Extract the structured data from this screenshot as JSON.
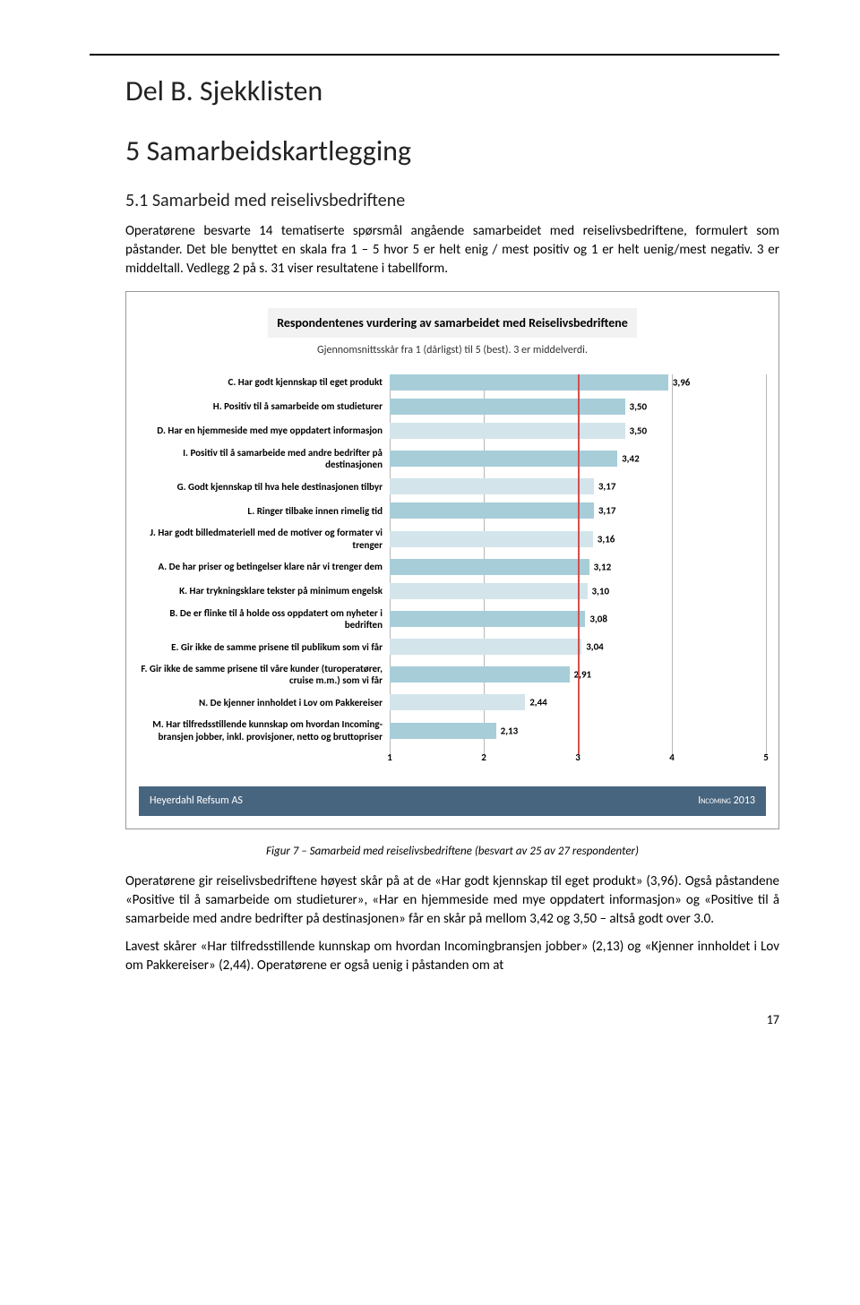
{
  "headings": {
    "part": "Del B. Sjekklisten",
    "section": "5 Samarbeidskartlegging",
    "subsection": "5.1 Samarbeid med reiselivsbedriftene"
  },
  "paragraphs": {
    "intro": "Operatørene besvarte 14 tematiserte spørsmål angående samarbeidet med reiselivsbedriftene, formulert som påstander. Det ble benyttet en skala fra 1 – 5 hvor 5 er helt enig / mest positiv og 1 er helt uenig/mest negativ. 3 er middeltall. Vedlegg 2 på s. 31 viser resultatene i tabellform.",
    "p2": "Operatørene gir reiselivsbedriftene høyest skår på at de «Har godt kjennskap til eget produkt» (3,96). Også påstandene «Positive til å samarbeide om studieturer», «Har en hjemmeside med mye oppdatert informasjon» og «Positive til å samarbeide med andre bedrifter på destinasjonen» får en skår på mellom 3,42 og 3,50 – altså godt over 3.0.",
    "p3": "Lavest skårer «Har tilfredsstillende kunnskap om hvordan Incomingbransjen jobber» (2,13) og «Kjenner innholdet i Lov om Pakkereiser» (2,44). Operatørene er også uenig i påstanden om at"
  },
  "chart": {
    "title": "Respondentenes vurdering av samarbeidet med Reiselivsbedriftene",
    "subtitle": "Gjennomsnittsskår fra 1 (dårligst) til 5 (best). 3 er middelverdi.",
    "x_min": 1,
    "x_max": 5,
    "ticks": [
      1,
      2,
      3,
      4,
      5
    ],
    "highlight_line": 3,
    "bar_color_high": "#a7cdd8",
    "bar_color_low": "#d3e5eb",
    "gridline_color": "#b7b7b7",
    "highlight_color": "#d05050",
    "items": [
      {
        "label": "C. Har godt kjennskap til eget produkt",
        "value": 3.96,
        "display": "3,96",
        "shade": "high"
      },
      {
        "label": "H. Positiv til å samarbeide om studieturer",
        "value": 3.5,
        "display": "3,50",
        "shade": "high"
      },
      {
        "label": "D. Har en hjemmeside med mye oppdatert informasjon",
        "value": 3.5,
        "display": "3,50",
        "shade": "low"
      },
      {
        "label": "I. Positiv til å samarbeide med andre bedrifter på destinasjonen",
        "value": 3.42,
        "display": "3,42",
        "shade": "high"
      },
      {
        "label": "G. Godt kjennskap til hva hele destinasjonen tilbyr",
        "value": 3.17,
        "display": "3,17",
        "shade": "low"
      },
      {
        "label": "L. Ringer tilbake innen rimelig tid",
        "value": 3.17,
        "display": "3,17",
        "shade": "high"
      },
      {
        "label": "J. Har godt billedmateriell med de motiver og formater vi trenger",
        "value": 3.16,
        "display": "3,16",
        "shade": "low"
      },
      {
        "label": "A. De har priser og betingelser klare når vi trenger dem",
        "value": 3.12,
        "display": "3,12",
        "shade": "high"
      },
      {
        "label": "K. Har trykningsklare tekster på minimum engelsk",
        "value": 3.1,
        "display": "3,10",
        "shade": "low"
      },
      {
        "label": "B. De er flinke til å holde oss oppdatert om nyheter i bedriften",
        "value": 3.08,
        "display": "3,08",
        "shade": "high"
      },
      {
        "label": "E. Gir ikke de samme prisene til publikum som vi får",
        "value": 3.04,
        "display": "3,04",
        "shade": "low"
      },
      {
        "label": "F. Gir ikke de samme prisene til våre kunder (turoperatører, cruise m.m.) som vi får",
        "value": 2.91,
        "display": "2,91",
        "shade": "high"
      },
      {
        "label": "N. De kjenner innholdet i Lov om Pakkereiser",
        "value": 2.44,
        "display": "2,44",
        "shade": "low"
      },
      {
        "label": "M. Har tilfredsstillende kunnskap om hvordan Incoming-bransjen jobber, inkl. provisjoner, netto og bruttopriser",
        "value": 2.13,
        "display": "2,13",
        "shade": "high"
      }
    ],
    "footer_left": "Heyerdahl Refsum AS",
    "footer_right": "Incoming 2013"
  },
  "caption": "Figur 7 – Samarbeid med reiselivsbedriftene (besvart av 25 av 27 respondenter)",
  "page_number": "17"
}
